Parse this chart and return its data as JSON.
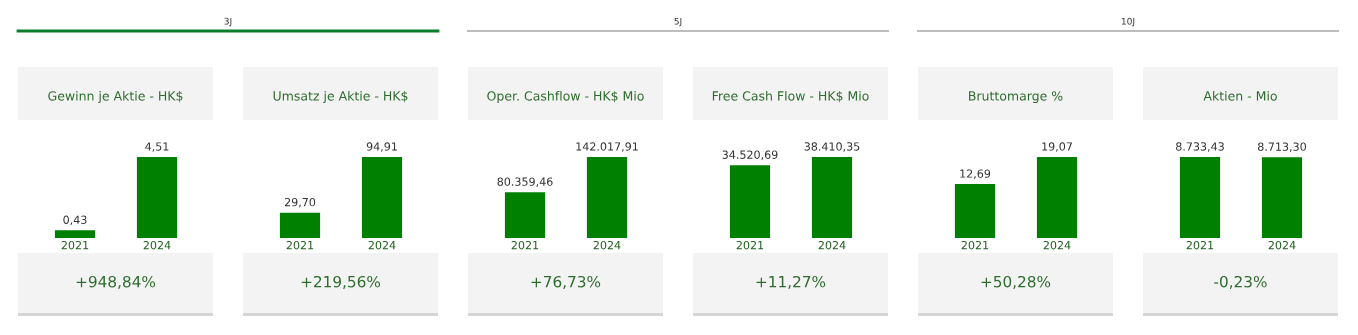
{
  "chart_data": [
    {
      "type": "other",
      "annotations": [
        "3J",
        "5J",
        "10J"
      ]
    },
    {
      "type": "bar",
      "title": "Gewinn je Aktie - HK$",
      "categories": [
        "2021",
        "2024"
      ],
      "values": [
        0.43,
        4.51
      ],
      "value_labels": [
        "0,43",
        "4,51"
      ],
      "color": "#008000",
      "annotations": [
        "+948,84%"
      ]
    },
    {
      "type": "bar",
      "title": "Umsatz je Aktie - HK$",
      "categories": [
        "2021",
        "2024"
      ],
      "values": [
        29.7,
        94.91
      ],
      "value_labels": [
        "29,70",
        "94,91"
      ],
      "color": "#008000",
      "annotations": [
        "+219,56%"
      ]
    },
    {
      "type": "bar",
      "title": "Oper. Cashflow - HK$ Mio",
      "categories": [
        "2021",
        "2024"
      ],
      "values": [
        80359.46,
        142017.91
      ],
      "value_labels": [
        "80.359,46",
        "142.017,91"
      ],
      "color": "#008000",
      "annotations": [
        "+76,73%"
      ]
    },
    {
      "type": "bar",
      "title": "Free Cash Flow - HK$ Mio",
      "categories": [
        "2021",
        "2024"
      ],
      "values": [
        34520.69,
        38410.35
      ],
      "value_labels": [
        "34.520,69",
        "38.410,35"
      ],
      "color": "#008000",
      "annotations": [
        "+11,27%"
      ]
    },
    {
      "type": "bar",
      "title": "Bruttomarge %",
      "categories": [
        "2021",
        "2024"
      ],
      "values": [
        12.69,
        19.07
      ],
      "value_labels": [
        "12,69",
        "19,07"
      ],
      "color": "#008000",
      "annotations": [
        "+50,28%"
      ]
    },
    {
      "type": "bar",
      "title": "Aktien - Mio",
      "categories": [
        "2021",
        "2024"
      ],
      "values": [
        8733.43,
        8713.3
      ],
      "value_labels": [
        "8.733,43",
        "8.713,30"
      ],
      "color": "#008000",
      "annotations": [
        "-0,23%"
      ]
    }
  ]
}
